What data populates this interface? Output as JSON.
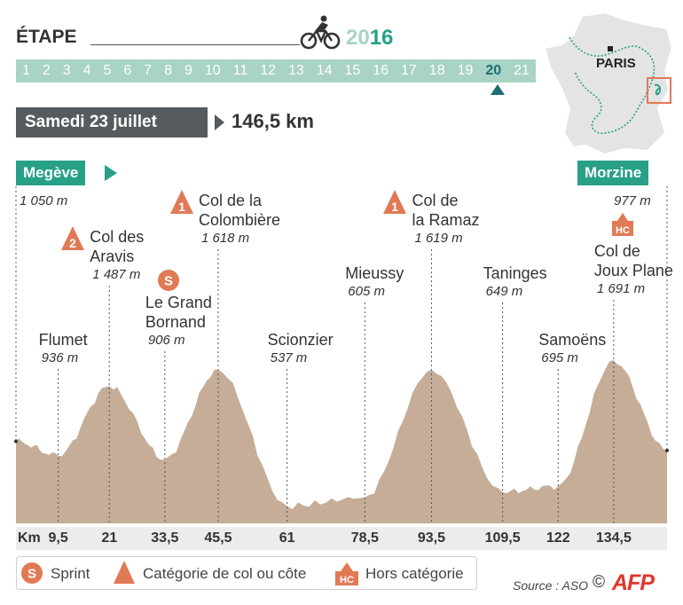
{
  "header": {
    "title": "ÉTAPE",
    "year_prefix": "20",
    "year_suffix": "16",
    "stage_label": "Étape 20"
  },
  "stages": [
    "1",
    "2",
    "3",
    "4",
    "5",
    "6",
    "7",
    "8",
    "9",
    "10",
    "11",
    "12",
    "13",
    "14",
    "15",
    "16",
    "17",
    "18",
    "19",
    "20",
    "21"
  ],
  "current_stage": "20",
  "date": "Samedi 23 juillet",
  "distance": "146,5 km",
  "map": {
    "city": "PARIS"
  },
  "start": {
    "name": "Megève",
    "altitude": "1 050 m"
  },
  "finish": {
    "name": "Morzine",
    "altitude": "977 m"
  },
  "km_label": "Km",
  "points": [
    {
      "name": "Flumet",
      "altitude": "936 m",
      "km": "9,5",
      "badge": ""
    },
    {
      "name": "Col des\nAravis",
      "altitude": "1 487 m",
      "km": "21",
      "badge": "2"
    },
    {
      "name": "Le Grand\nBornand",
      "altitude": "906 m",
      "km": "33,5",
      "badge": "S"
    },
    {
      "name": "Col de la\nColombière",
      "altitude": "1 618 m",
      "km": "45,5",
      "badge": "1"
    },
    {
      "name": "Scionzier",
      "altitude": "537 m",
      "km": "61",
      "badge": ""
    },
    {
      "name": "Mieussy",
      "altitude": "605 m",
      "km": "78,5",
      "badge": ""
    },
    {
      "name": "Col de\nla Ramaz",
      "altitude": "1 619 m",
      "km": "93,5",
      "badge": "1"
    },
    {
      "name": "Taninges",
      "altitude": "649 m",
      "km": "109,5",
      "badge": ""
    },
    {
      "name": "Samoëns",
      "altitude": "695 m",
      "km": "122",
      "badge": ""
    },
    {
      "name": "Col de\nJoux Plane",
      "altitude": "1 691 m",
      "km": "134,5",
      "badge": "HC"
    }
  ],
  "legend": {
    "sprint": "Sprint",
    "sprint_badge": "S",
    "category": "Catégorie de col ou côte",
    "hors": "Hors catégorie",
    "hors_badge": "HC"
  },
  "source": "Source : ASO",
  "copyright": "©",
  "brand": "AFP",
  "colors": {
    "accent": "#27a087",
    "strip": "#a8d3c5",
    "current_stage": "#1c6d73",
    "profile": "#c5ad98",
    "badge": "#e07a55",
    "date_box": "#555a5e",
    "afp": "#e2362a"
  },
  "chart_data": {
    "type": "area",
    "xlabel": "Km",
    "ylabel": "",
    "x": [
      0,
      9.5,
      21,
      33.5,
      45.5,
      61,
      78.5,
      93.5,
      109.5,
      122,
      134.5,
      146.5
    ],
    "y": [
      1050,
      936,
      1487,
      906,
      1618,
      537,
      605,
      1619,
      649,
      695,
      1691,
      977
    ],
    "grid": false,
    "legend": "bottom"
  }
}
